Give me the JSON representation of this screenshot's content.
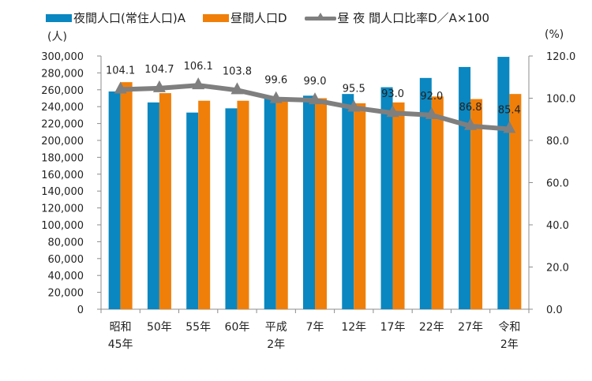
{
  "chart_data": {
    "type": "bar",
    "title": "",
    "categories": [
      [
        "昭和",
        "45年"
      ],
      [
        "50年"
      ],
      [
        "55年"
      ],
      [
        "60年"
      ],
      [
        "平成",
        "2年"
      ],
      [
        "7年"
      ],
      [
        "12年"
      ],
      [
        "17年"
      ],
      [
        "22年"
      ],
      [
        "27年"
      ],
      [
        "令和",
        "2年"
      ]
    ],
    "series": [
      {
        "name": "夜間人口(常住人口)A",
        "type": "bar",
        "axis": "left",
        "color": "#0a87c0",
        "values": [
          258000,
          245000,
          233000,
          238000,
          252000,
          253000,
          255000,
          263000,
          274000,
          287000,
          299000
        ]
      },
      {
        "name": "昼間人口D",
        "type": "bar",
        "axis": "left",
        "color": "#f07f09",
        "values": [
          269000,
          256000,
          247000,
          247000,
          251000,
          250000,
          244000,
          245000,
          252000,
          249000,
          255000
        ]
      },
      {
        "name": "昼夜間人口比率D/A×100",
        "type": "line",
        "axis": "right",
        "color": "#7f7f7f",
        "values": [
          104.1,
          104.7,
          106.1,
          103.8,
          99.6,
          99.0,
          95.5,
          93.0,
          92.0,
          86.8,
          85.4
        ],
        "labels": [
          "104.1",
          "104.7",
          "106.1",
          "103.8",
          "99.6",
          "99.0",
          "95.5",
          "93.0",
          "92.0",
          "86.8",
          "85.4"
        ]
      }
    ],
    "legend": {
      "position": "top",
      "items": [
        "夜間人口(常住人口)A",
        "昼間人口D",
        "昼 夜 間人口比率D／A×100"
      ]
    },
    "left_axis": {
      "unit_label": "(人)",
      "ylim": [
        0,
        300000
      ],
      "ticks": [
        "0",
        "20,000",
        "40,000",
        "60,000",
        "80,000",
        "100,000",
        "120,000",
        "140,000",
        "160,000",
        "180,000",
        "200,000",
        "220,000",
        "240,000",
        "260,000",
        "280,000",
        "300,000"
      ]
    },
    "right_axis": {
      "unit_label": "(%)",
      "ylim": [
        0,
        120
      ],
      "ticks": [
        "0.0",
        "20.0",
        "40.0",
        "60.0",
        "80.0",
        "100.0",
        "120.0"
      ]
    },
    "grid": false
  }
}
